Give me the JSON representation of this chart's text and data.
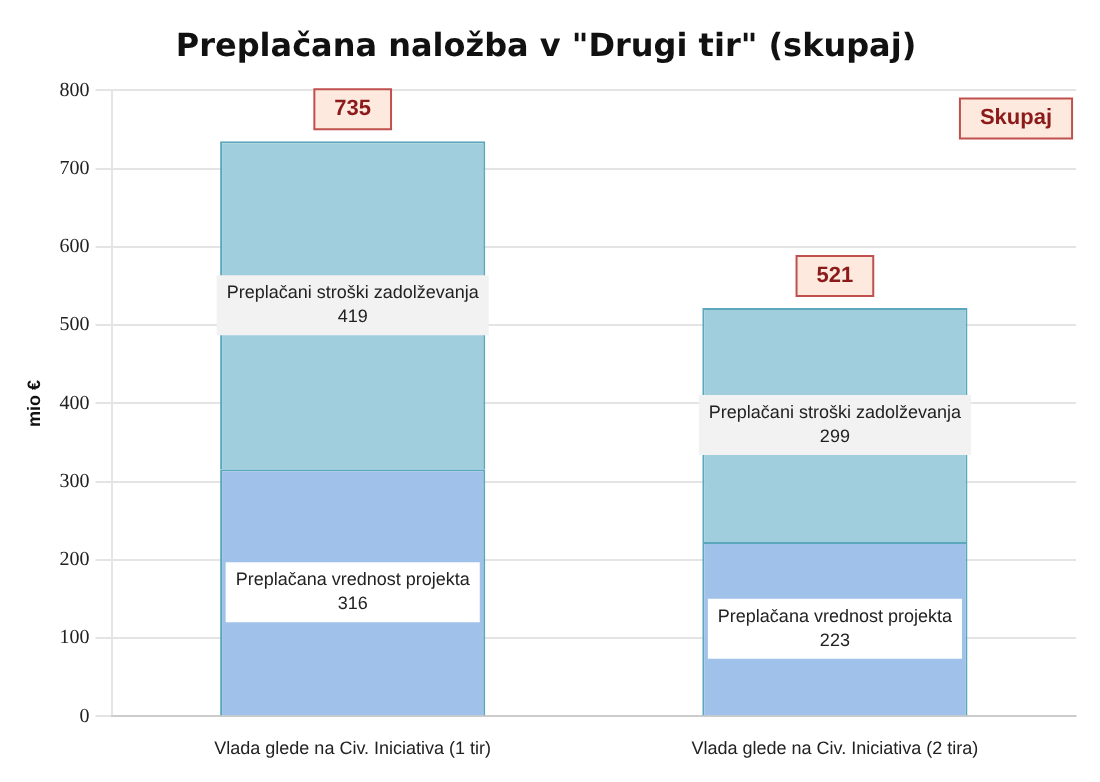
{
  "chart_data": {
    "type": "bar",
    "title": "Preplačana naložba v \"Drugi tir\" (skupaj)",
    "ylabel": "mio €",
    "categories": [
      "Vlada glede na Civ. Iniciativa (1 tir)",
      "Vlada glede na Civ. Iniciativa (2 tira)"
    ],
    "series": [
      {
        "name": "Preplačana vrednost projekta",
        "color": "#a0c1ea",
        "values": [
          316,
          223
        ]
      },
      {
        "name": "Preplačani stroški zadolževanja",
        "color": "#a1cedc",
        "values": [
          419,
          299
        ]
      }
    ],
    "stacked": true,
    "totals": [
      "735",
      "521"
    ],
    "annotations": [
      "Skupaj"
    ],
    "data_labels": true,
    "ylim": [
      0,
      800
    ],
    "yticks": [
      0,
      100,
      200,
      300,
      400,
      500,
      600,
      700,
      800
    ],
    "grid": "y",
    "legend": false
  }
}
